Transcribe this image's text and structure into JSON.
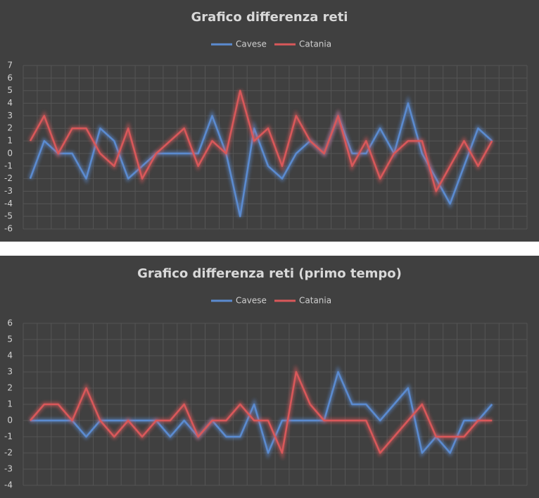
{
  "chart_data": [
    {
      "type": "line",
      "title": "Grafico differenza reti",
      "categories": [
        null,
        null,
        null,
        null,
        null,
        null,
        null,
        null,
        null,
        null,
        null,
        null,
        null,
        null,
        null,
        null,
        null,
        null,
        null,
        null,
        null,
        null,
        null,
        null,
        null,
        null,
        null,
        null,
        null,
        null,
        null,
        null,
        null,
        null,
        null,
        null
      ],
      "series": [
        {
          "name": "Cavese",
          "color": "#5b8bd0",
          "values": [
            -2,
            1,
            0,
            0,
            -2,
            2,
            1,
            -2,
            -1,
            0,
            0,
            0,
            0,
            3,
            0,
            -5,
            2,
            -1,
            -2,
            0,
            1,
            0,
            3,
            0,
            0,
            2,
            0,
            4,
            0,
            -2,
            -4,
            -1,
            2,
            1,
            null,
            null
          ]
        },
        {
          "name": "Catania",
          "color": "#d9585a",
          "values": [
            1,
            3,
            0,
            2,
            2,
            0,
            -1,
            2,
            -2,
            0,
            1,
            2,
            -1,
            1,
            0,
            5,
            1,
            2,
            -1,
            3,
            1,
            0,
            3,
            -1,
            1,
            -2,
            0,
            1,
            1,
            -3,
            -1,
            1,
            -1,
            1,
            null,
            null
          ]
        }
      ],
      "ylim": [
        -6,
        7
      ],
      "yticks": [
        -6,
        -5,
        -4,
        -3,
        -2,
        -1,
        0,
        1,
        2,
        3,
        4,
        5,
        6,
        7
      ],
      "grid": true,
      "legend": "top"
    },
    {
      "type": "line",
      "title": "Grafico differenza reti (primo tempo)",
      "categories": [
        null,
        null,
        null,
        null,
        null,
        null,
        null,
        null,
        null,
        null,
        null,
        null,
        null,
        null,
        null,
        null,
        null,
        null,
        null,
        null,
        null,
        null,
        null,
        null,
        null,
        null,
        null,
        null,
        null,
        null,
        null,
        null,
        null,
        null,
        null,
        null
      ],
      "series": [
        {
          "name": "Cavese",
          "color": "#5b8bd0",
          "values": [
            0,
            0,
            0,
            0,
            -1,
            0,
            0,
            0,
            0,
            0,
            -1,
            0,
            -1,
            0,
            -1,
            -1,
            1,
            -2,
            0,
            0,
            0,
            0,
            3,
            1,
            1,
            0,
            1,
            2,
            -2,
            -1,
            -2,
            0,
            0,
            1,
            null,
            null
          ]
        },
        {
          "name": "Catania",
          "color": "#d9585a",
          "values": [
            0,
            1,
            1,
            0,
            2,
            0,
            -1,
            0,
            -1,
            0,
            0,
            1,
            -1,
            0,
            0,
            1,
            0,
            0,
            -2,
            3,
            1,
            0,
            0,
            0,
            0,
            -2,
            -1,
            0,
            1,
            -1,
            -1,
            -1,
            0,
            0,
            null,
            null
          ]
        }
      ],
      "ylim": [
        -4,
        6
      ],
      "yticks": [
        -4,
        -3,
        -2,
        -1,
        0,
        1,
        2,
        3,
        4,
        5,
        6
      ],
      "grid": true,
      "legend": "top"
    }
  ]
}
